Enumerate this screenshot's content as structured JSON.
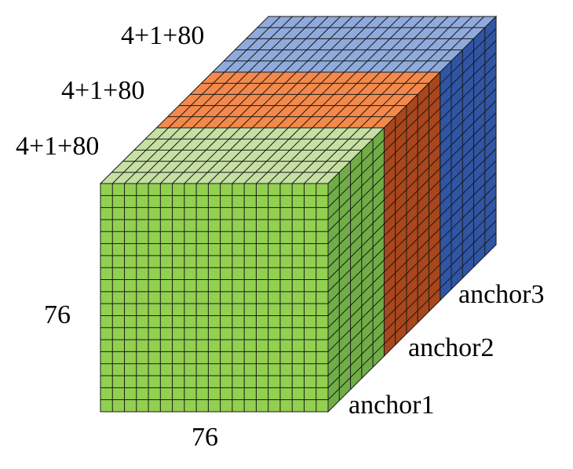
{
  "labels": {
    "depth_blue": "4+1+80",
    "depth_orange": "4+1+80",
    "depth_green": "4+1+80",
    "height": "76",
    "width": "76",
    "anchor3": "anchor3",
    "anchor2": "anchor2",
    "anchor1": "anchor1"
  },
  "grid": {
    "rows": 19,
    "cols": 19,
    "depth_per_slab": 5,
    "slabs": 3
  },
  "colors": {
    "green_front": "#92d050",
    "green_top": "#c6e0a4",
    "green_side": "#70ad47",
    "orange_top": "#f4894b",
    "orange_side": "#a9461b",
    "blue_top": "#8faadc",
    "blue_side": "#2f55a4",
    "grid_line": "#1a1a1a"
  }
}
